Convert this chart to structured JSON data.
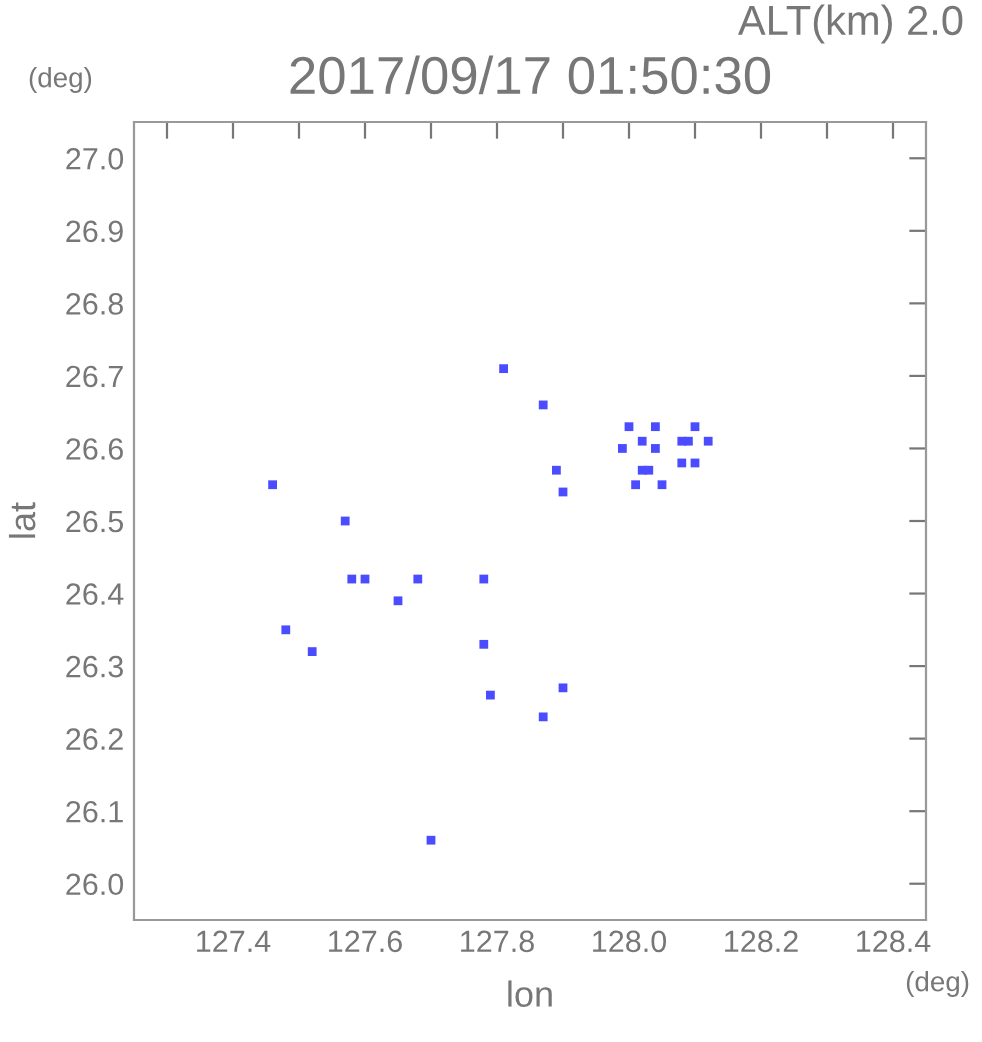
{
  "chart_data": {
    "type": "scatter",
    "title": "2017/09/17 01:50:30",
    "subtitle": "ALT(km) 2.0",
    "xlabel": "lon",
    "ylabel": "lat",
    "annotations": [
      "(deg)",
      "(deg)"
    ],
    "marker": "square",
    "grid": false,
    "legend": false,
    "xlim": [
      127.25,
      128.45
    ],
    "ylim": [
      25.95,
      27.05
    ],
    "xticks": [
      {
        "value": 127.3,
        "label": null
      },
      {
        "value": 127.4,
        "label": "127.4"
      },
      {
        "value": 127.5,
        "label": null
      },
      {
        "value": 127.6,
        "label": "127.6"
      },
      {
        "value": 127.7,
        "label": null
      },
      {
        "value": 127.8,
        "label": "127.8"
      },
      {
        "value": 127.9,
        "label": null
      },
      {
        "value": 128.0,
        "label": "128.0"
      },
      {
        "value": 128.1,
        "label": null
      },
      {
        "value": 128.2,
        "label": "128.2"
      },
      {
        "value": 128.3,
        "label": null
      },
      {
        "value": 128.4,
        "label": "128.4"
      }
    ],
    "yticks": [
      {
        "value": 26.0,
        "label": "26.0"
      },
      {
        "value": 26.1,
        "label": "26.1"
      },
      {
        "value": 26.2,
        "label": "26.2"
      },
      {
        "value": 26.3,
        "label": "26.3"
      },
      {
        "value": 26.4,
        "label": "26.4"
      },
      {
        "value": 26.5,
        "label": "26.5"
      },
      {
        "value": 26.6,
        "label": "26.6"
      },
      {
        "value": 26.7,
        "label": "26.7"
      },
      {
        "value": 26.8,
        "label": "26.8"
      },
      {
        "value": 26.9,
        "label": "26.9"
      },
      {
        "value": 27.0,
        "label": "27.0"
      }
    ],
    "series": [
      {
        "color": "#4b4bff",
        "x": [
          127.81,
          127.87,
          127.89,
          127.9,
          127.46,
          127.57,
          127.58,
          127.6,
          127.68,
          127.65,
          127.78,
          127.48,
          127.52,
          127.78,
          127.79,
          127.9,
          127.87,
          127.7,
          128.0,
          127.99,
          128.02,
          128.04,
          128.04,
          128.02,
          128.03,
          128.05,
          128.01,
          128.08,
          128.09,
          128.1,
          128.12,
          128.08,
          128.1
        ],
        "values": [
          26.71,
          26.66,
          26.57,
          26.54,
          26.55,
          26.5,
          26.42,
          26.42,
          26.42,
          26.39,
          26.42,
          26.35,
          26.32,
          26.33,
          26.26,
          26.27,
          26.23,
          26.06,
          26.63,
          26.6,
          26.61,
          26.63,
          26.6,
          26.57,
          26.57,
          26.55,
          26.55,
          26.61,
          26.61,
          26.63,
          26.61,
          26.58,
          26.58
        ]
      }
    ]
  }
}
